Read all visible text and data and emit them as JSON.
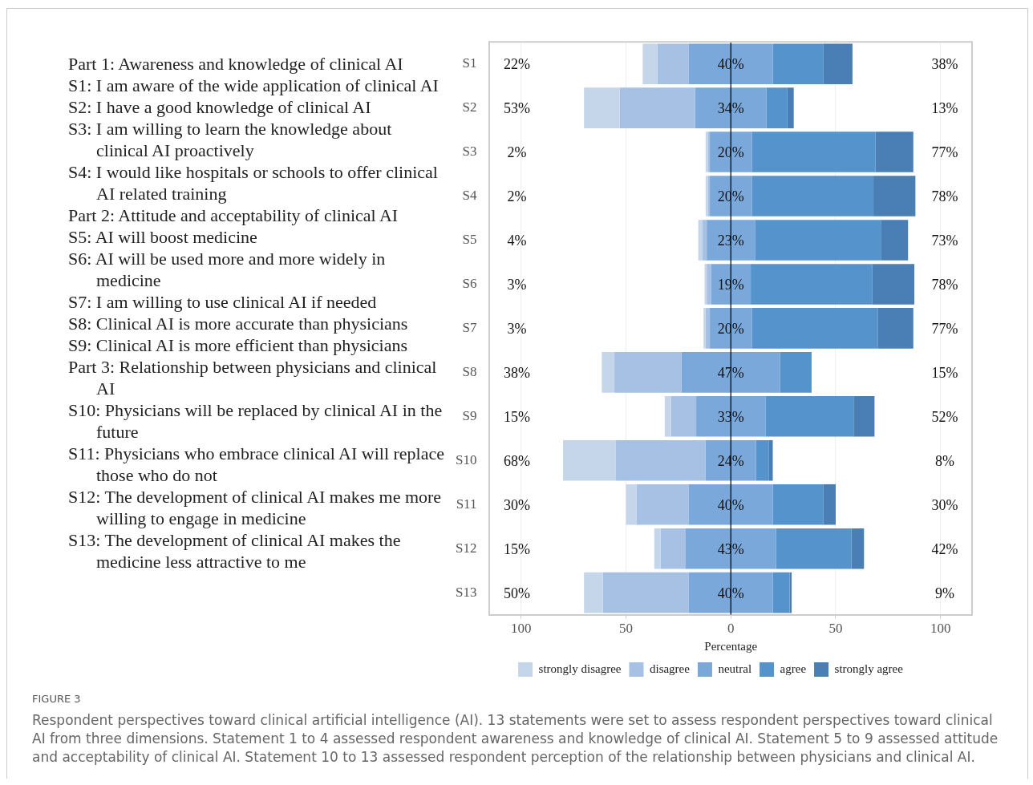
{
  "chart_data": [
    {
      "type": "other",
      "annotations": [
        "Part 1: Awareness and knowledge of clinical AI",
        "S1: I am aware of the wide application of clinical AI",
        "S2: I have a good knowledge of clinical AI",
        "S3: I am willing to learn the knowledge about clinical AI proactively",
        "S4: I would like hospitals or schools to offer clinical AI related training",
        "Part 2: Attitude and acceptability of clinical AI",
        "S5: AI will boost medicine",
        "S6: AI will be used more and more widely in medicine",
        "S7: I am willing to use clinical AI if needed",
        "S8: Clinical AI is more accurate than physicians",
        "S9: Clinical AI is more efficient than physicians",
        "Part 3: Relationship between physicians and clinical AI",
        "S10: Physicians will be replaced by clinical AI in the future",
        "S11: Physicians who embrace clinical AI will replace those who do not",
        "S12: The development of clinical AI makes me more willing to engage in medicine",
        "S13: The development of clinical AI makes the medicine less attractive to me"
      ]
    },
    {
      "type": "bar",
      "orientation": "horizontal",
      "xlabel": "Percentage",
      "categories": [
        "S1",
        "S2",
        "S3",
        "S4",
        "S5",
        "S6",
        "S7",
        "S8",
        "S9",
        "S10",
        "S11",
        "S12",
        "S13"
      ],
      "series": [
        {
          "name": "strongly disagree",
          "color": "#c5d5ea",
          "values": [
            7,
            17,
            1,
            1,
            2,
            1,
            1,
            6,
            3,
            25,
            5,
            3,
            9
          ],
          "base": [
            -42,
            -70,
            -12,
            -12,
            -15.5,
            -12.5,
            -13,
            -61.5,
            -31.5,
            -80,
            -50,
            -36.5,
            -70
          ]
        },
        {
          "name": "disagree",
          "color": "#a7c1e5",
          "values": [
            15,
            36,
            1,
            1,
            2,
            2,
            2,
            32,
            12,
            43,
            25,
            12,
            41
          ],
          "base": [
            -35,
            -53,
            -11,
            -11,
            -13.5,
            -11.5,
            -12,
            -55.5,
            -28.5,
            -55,
            -45,
            -33.5,
            -61
          ]
        },
        {
          "name": "neutral",
          "color": "#7aa8da",
          "values": [
            40,
            34,
            20,
            20,
            23,
            19,
            20,
            47,
            33,
            24,
            40,
            43,
            40
          ],
          "base": [
            -20,
            -17,
            -10,
            -10,
            -11.5,
            -9.5,
            -10,
            -23.5,
            -16.5,
            -12,
            -20,
            -21.5,
            -20
          ],
          "value_labels": [
            "40%",
            "34%",
            "20%",
            "20%",
            "23%",
            "19%",
            "20%",
            "47%",
            "33%",
            "24%",
            "40%",
            "43%",
            "40%"
          ]
        },
        {
          "name": "agree",
          "color": "#5593cc",
          "values": [
            24,
            10,
            59,
            58,
            60,
            58,
            60,
            15,
            42,
            6,
            24,
            36,
            8
          ],
          "base": [
            20,
            17,
            10,
            10,
            11.5,
            9.5,
            10,
            23.5,
            16.5,
            12,
            20,
            21.5,
            20
          ]
        },
        {
          "name": "strongly agree",
          "color": "#4a7fb5",
          "values": [
            14,
            3,
            18,
            20,
            13,
            20,
            17,
            null,
            10,
            2,
            6,
            6,
            1
          ],
          "base": [
            44,
            27,
            69,
            68,
            71.5,
            67.5,
            70,
            null,
            58.5,
            18,
            44,
            57.5,
            28
          ]
        }
      ],
      "xlim": [
        -115,
        115
      ],
      "xticks": [
        {
          "value": -100,
          "label": "100"
        },
        {
          "value": -50,
          "label": "50"
        },
        0,
        50,
        100
      ],
      "ref_lines": [
        {
          "axis": "x",
          "value": 0,
          "color": "#000000"
        }
      ],
      "legend": "bottom",
      "grid": "x",
      "annotations": [
        "22%",
        "38%",
        "53%",
        "13%",
        "2%",
        "77%",
        "2%",
        "78%",
        "4%",
        "73%",
        "3%",
        "78%",
        "3%",
        "77%",
        "38%",
        "15%",
        "15%",
        "52%",
        "68%",
        "8%",
        "30%",
        "30%",
        "15%",
        "42%",
        "50%",
        "9%"
      ]
    },
    {
      "type": "other",
      "annotations": [
        "FIGURE 3",
        "Respondent perspectives toward clinical artificial intelligence (AI). 13 statements were set to assess respondent perspectives toward clinical AI from three dimensions. Statement 1 to 4 assessed respondent awareness and knowledge of clinical AI. Statement 5 to 9 assessed attitude and acceptability of clinical AI. Statement 10 to 13 assessed respondent perception of the relationship between physicians and clinical AI."
      ]
    }
  ]
}
